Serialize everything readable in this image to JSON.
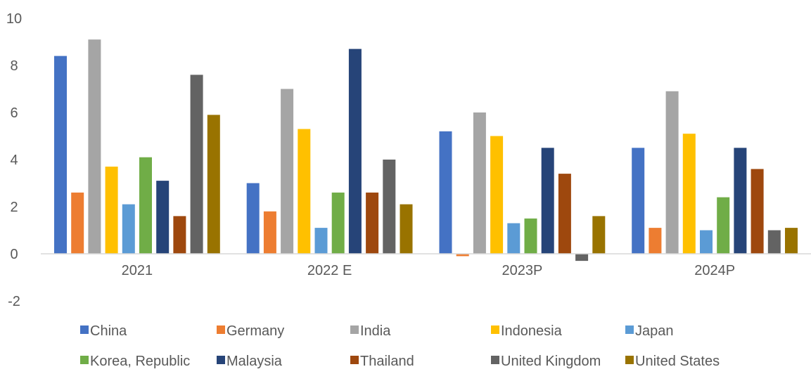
{
  "chart_data": {
    "type": "bar",
    "categories": [
      "2021",
      "2022 E",
      "2023P",
      "2024P"
    ],
    "ylim": [
      -2,
      10
    ],
    "yticks": [
      "-2",
      "0",
      "2",
      "4",
      "6",
      "8",
      "10"
    ],
    "grid": false,
    "legend_position": "bottom",
    "series": [
      {
        "name": "China",
        "color": "#4472C4",
        "values": [
          8.4,
          3.0,
          5.2,
          4.5
        ]
      },
      {
        "name": "Germany",
        "color": "#ED7D31",
        "values": [
          2.6,
          1.8,
          -0.1,
          1.1
        ]
      },
      {
        "name": "India",
        "color": "#A5A5A5",
        "values": [
          9.1,
          7.0,
          6.0,
          6.9
        ]
      },
      {
        "name": "Indonesia",
        "color": "#FFC000",
        "values": [
          3.7,
          5.3,
          5.0,
          5.1
        ]
      },
      {
        "name": "Japan",
        "color": "#5B9BD5",
        "values": [
          2.1,
          1.1,
          1.3,
          1.0
        ]
      },
      {
        "name": "Korea, Republic",
        "color": "#70AD47",
        "values": [
          4.1,
          2.6,
          1.5,
          2.4
        ]
      },
      {
        "name": "Malaysia",
        "color": "#264478",
        "values": [
          3.1,
          8.7,
          4.5,
          4.5
        ]
      },
      {
        "name": "Thailand",
        "color": "#9E480E",
        "values": [
          1.6,
          2.6,
          3.4,
          3.6
        ]
      },
      {
        "name": "United Kingdom",
        "color": "#636363",
        "values": [
          7.6,
          4.0,
          -0.3,
          1.0
        ]
      },
      {
        "name": "United States",
        "color": "#997300",
        "values": [
          5.9,
          2.1,
          1.6,
          1.1
        ]
      }
    ]
  }
}
